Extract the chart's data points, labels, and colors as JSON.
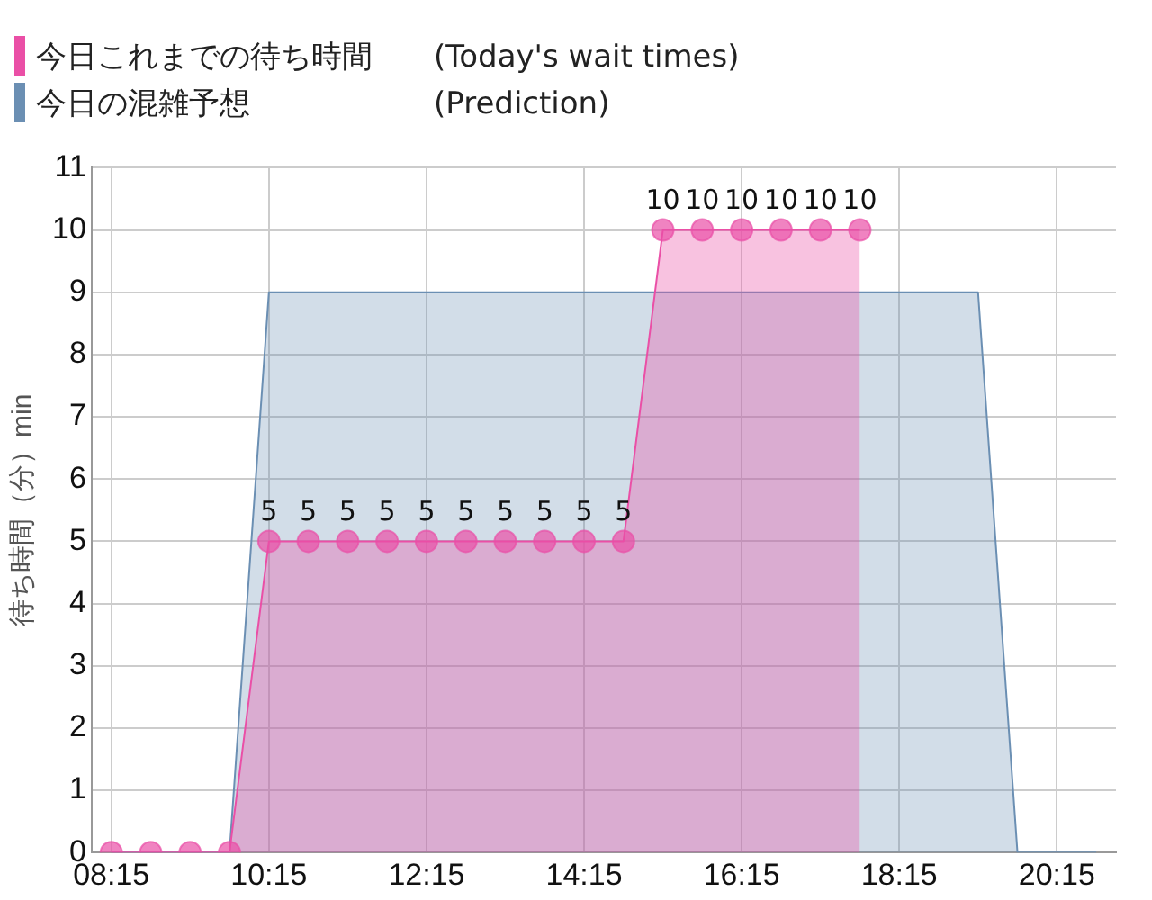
{
  "chart_data": {
    "type": "area",
    "ylabel": "待ち時間（分）min",
    "legend": "top left",
    "xlim": [
      8,
      21
    ],
    "xticks": [
      {
        "value": 8.25,
        "label": "08:15"
      },
      {
        "value": 10.25,
        "label": "10:15"
      },
      {
        "value": 12.25,
        "label": "12:15"
      },
      {
        "value": 14.25,
        "label": "14:15"
      },
      {
        "value": 16.25,
        "label": "16:15"
      },
      {
        "value": 18.25,
        "label": "18:15"
      },
      {
        "value": 20.25,
        "label": "20:15"
      }
    ],
    "ylim": [
      0,
      11
    ],
    "yticks": [
      0,
      1,
      2,
      3,
      4,
      5,
      6,
      7,
      8,
      9,
      10,
      11
    ],
    "grid": true,
    "series": [
      {
        "name": "今日これまでの待ち時間　　(Today's wait times)",
        "color": "#ea4fa6",
        "marker": "circle",
        "x": [
          8.25,
          8.75,
          9.25,
          9.75,
          10.25,
          10.75,
          11.25,
          11.75,
          12.25,
          12.75,
          13.25,
          13.75,
          14.25,
          14.75,
          15.25,
          15.75,
          16.25,
          16.75,
          17.25,
          17.75
        ],
        "values": [
          0,
          0,
          0,
          0,
          5,
          5,
          5,
          5,
          5,
          5,
          5,
          5,
          5,
          5,
          10,
          10,
          10,
          10,
          10,
          10
        ],
        "value_labels": [
          null,
          null,
          null,
          null,
          "5",
          "5",
          "5",
          "5",
          "5",
          "5",
          "5",
          "5",
          "5",
          "5",
          "10",
          "10",
          "10",
          "10",
          "10",
          "10"
        ]
      },
      {
        "name": "今日の混雑予想　　　　　　(Prediction)",
        "color": "#6b8fb3",
        "marker": "none",
        "x": [
          8.25,
          9.75,
          10.25,
          19.25,
          19.75,
          20.75
        ],
        "values": [
          0,
          0,
          9,
          9,
          0,
          0
        ]
      }
    ]
  }
}
